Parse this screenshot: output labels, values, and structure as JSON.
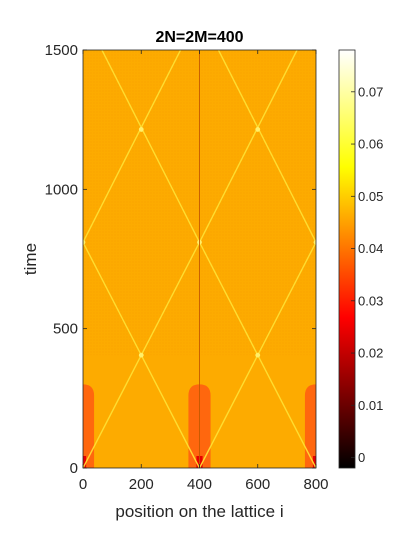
{
  "chart_data": {
    "type": "heatmap",
    "title": "2N=2M=400",
    "xlabel": "position on the lattice i",
    "ylabel": "time",
    "xlim": [
      0,
      800
    ],
    "ylim": [
      0,
      1500
    ],
    "x_ticks": [
      "0",
      "200",
      "400",
      "600",
      "800"
    ],
    "y_ticks": [
      "0",
      "500",
      "1000",
      "1500"
    ],
    "colorbar": {
      "range": [
        -0.002,
        0.078
      ],
      "ticks": [
        "0",
        "0.01",
        "0.02",
        "0.03",
        "0.04",
        "0.05",
        "0.06",
        "0.07"
      ],
      "colormap": "hot",
      "colors": [
        "#000000",
        "#ff0000",
        "#ffff00",
        "#ffffff"
      ]
    },
    "background_value": 0.06,
    "background_color": "#fdab00",
    "front_color": "#ffe033",
    "blob_color": "#ff5a10",
    "features": {
      "wave_fronts": [
        {
          "x0": 0,
          "t0": 0,
          "x1": 400,
          "t1": 810
        },
        {
          "x0": 400,
          "t0": 0,
          "x1": 0,
          "t1": 810
        },
        {
          "x0": 400,
          "t0": 0,
          "x1": 800,
          "t1": 810
        },
        {
          "x0": 800,
          "t0": 0,
          "x1": 400,
          "t1": 810
        },
        {
          "x0": 0,
          "t0": 810,
          "x1": 335,
          "t1": 1500
        },
        {
          "x0": 400,
          "t0": 810,
          "x1": 65,
          "t1": 1500
        },
        {
          "x0": 400,
          "t0": 810,
          "x1": 735,
          "t1": 1500
        },
        {
          "x0": 800,
          "t0": 810,
          "x1": 465,
          "t1": 1500
        }
      ],
      "crossings": [
        {
          "x": 200,
          "t": 405
        },
        {
          "x": 600,
          "t": 405
        },
        {
          "x": 0,
          "t": 810
        },
        {
          "x": 400,
          "t": 810
        },
        {
          "x": 800,
          "t": 810
        },
        {
          "x": 200,
          "t": 1215
        },
        {
          "x": 600,
          "t": 1215
        }
      ],
      "blobs": [
        {
          "x": 0,
          "half_width": 38,
          "t_max": 300
        },
        {
          "x": 400,
          "half_width": 38,
          "t_max": 300
        },
        {
          "x": 800,
          "half_width": 38,
          "t_max": 300
        }
      ],
      "center_line_x": 400
    }
  }
}
